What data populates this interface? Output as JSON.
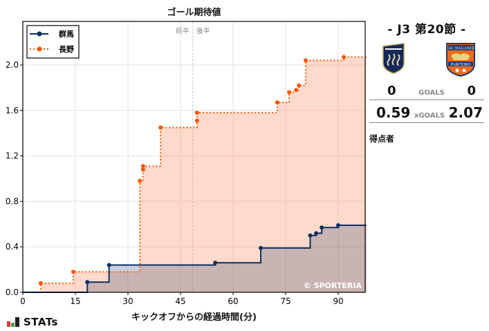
{
  "chart_data": {
    "type": "line",
    "subtype": "step-cumulative-area",
    "title": "ゴール期待値",
    "xlabel": "キックオフからの経過時間(分)",
    "ylabel": "",
    "xlim": [
      0,
      98
    ],
    "ylim": [
      0,
      2.4
    ],
    "xticks": [
      0,
      15,
      30,
      45,
      60,
      75,
      90
    ],
    "yticks": [
      0.0,
      0.4,
      0.8,
      1.2,
      1.6,
      2.0
    ],
    "ytick_labels": [
      "0.0",
      "0.4",
      "0.8",
      "1.2",
      "1.6",
      "2.0"
    ],
    "grid": true,
    "halftime_line": {
      "x": 48.5,
      "label_left": "前半",
      "label_right": "後半"
    },
    "legend_position": "upper left",
    "annotation": "© SPORTERIA",
    "series": [
      {
        "name": "群馬",
        "color": "#0b2f5e",
        "linestyle": "solid",
        "x": [
          18.4,
          24.6,
          54.9,
          67.9,
          82.0,
          83.7,
          85.3,
          90.0
        ],
        "y": [
          0.09,
          0.24,
          0.26,
          0.39,
          0.5,
          0.52,
          0.57,
          0.59
        ]
      },
      {
        "name": "長野",
        "color": "#ff5500",
        "linestyle": "dotted",
        "x": [
          5.1,
          14.4,
          33.4,
          34.3,
          34.3,
          39.3,
          49.7,
          49.7,
          72.6,
          76.0,
          78.0,
          78.8,
          80.7,
          91.6
        ],
        "y": [
          0.08,
          0.18,
          0.98,
          1.08,
          1.11,
          1.45,
          1.51,
          1.58,
          1.67,
          1.76,
          1.78,
          1.82,
          2.04,
          2.07
        ]
      }
    ]
  },
  "match": {
    "label": "-  J3 第20節  -",
    "home_crest": "gunma-crest-icon",
    "away_crest": "nagano-parceiro-crest-icon",
    "away_crest_text_top": "AC NAGANO",
    "away_crest_text_bottom": "PARCEIRO",
    "home_goals": "0",
    "goals_label": "GOALS",
    "away_goals": "0",
    "home_xg": "0.59",
    "xg_label": "xGOALS",
    "away_xg": "2.07",
    "scorers_label": "得点者"
  },
  "branding": {
    "logo_text": "STATs",
    "logo_icon": "bar-chart-icon"
  }
}
